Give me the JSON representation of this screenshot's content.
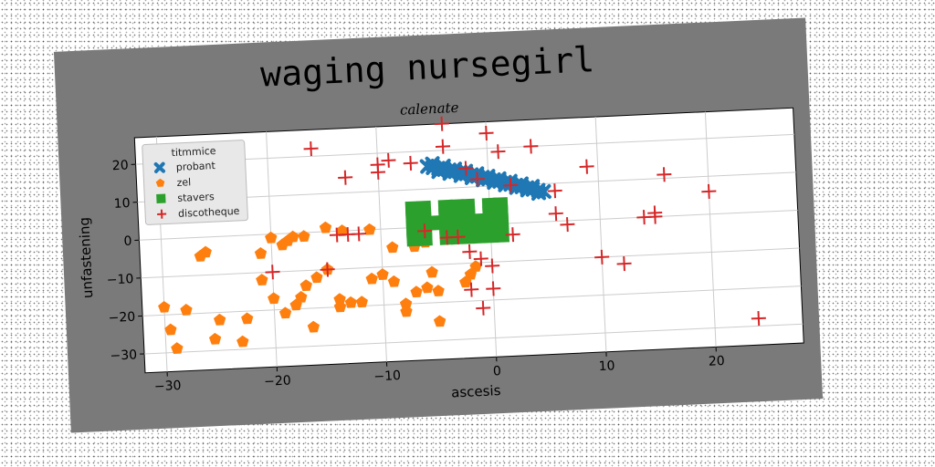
{
  "chart_data": {
    "type": "scatter",
    "title": "waging nursegirl",
    "subtitle": "calenate",
    "xlabel": "ascesis",
    "ylabel": "unfastening",
    "xlim": [
      -32,
      28
    ],
    "ylim": [
      -35,
      27
    ],
    "xticks": [
      -30,
      -20,
      -10,
      0,
      10,
      20
    ],
    "yticks": [
      -30,
      -20,
      -10,
      0,
      10,
      20
    ],
    "grid": true,
    "legend": {
      "title": "titmmice",
      "placement": "top-left",
      "entries": [
        "probant",
        "zel",
        "stavers",
        "discotheque"
      ]
    },
    "series": [
      {
        "name": "probant",
        "marker": "x",
        "color": "#1f77b4",
        "points": [
          [
            -5.5,
            16
          ],
          [
            -5,
            15.6
          ],
          [
            -4.5,
            15.3
          ],
          [
            -4,
            15
          ],
          [
            -3.5,
            14.7
          ],
          [
            -3,
            14.3
          ],
          [
            -2.5,
            14
          ],
          [
            -2,
            13.6
          ],
          [
            -1.5,
            13.2
          ],
          [
            -1,
            12.8
          ],
          [
            -0.5,
            12.4
          ],
          [
            0,
            12
          ],
          [
            0.5,
            11.6
          ],
          [
            1,
            11.2
          ],
          [
            1.5,
            10.8
          ],
          [
            2,
            10.3
          ],
          [
            2.5,
            9.9
          ],
          [
            3,
            9.5
          ],
          [
            3.5,
            9.1
          ],
          [
            4,
            8.7
          ],
          [
            4.5,
            8.3
          ],
          [
            5,
            7.9
          ],
          [
            -5,
            16.6
          ],
          [
            -4,
            15.8
          ],
          [
            -3,
            14.9
          ],
          [
            -2,
            14.2
          ],
          [
            -1,
            13.4
          ],
          [
            0,
            12.6
          ],
          [
            1,
            11.8
          ],
          [
            2,
            11
          ],
          [
            3,
            10.2
          ],
          [
            4,
            9.4
          ],
          [
            -4.5,
            14.5
          ],
          [
            -3.5,
            13.9
          ],
          [
            -2.5,
            13.2
          ],
          [
            -1.5,
            12.5
          ],
          [
            -0.5,
            11.8
          ],
          [
            0.5,
            11
          ],
          [
            1.5,
            10.2
          ],
          [
            2.5,
            9.4
          ],
          [
            3.5,
            8.6
          ],
          [
            4.5,
            7.6
          ]
        ]
      },
      {
        "name": "zel",
        "marker": "pentagon",
        "color": "#ff7f0e",
        "points": [
          [
            -30,
            -18
          ],
          [
            -29.5,
            -24
          ],
          [
            -29,
            -29
          ],
          [
            -28,
            -19
          ],
          [
            -26.5,
            -5
          ],
          [
            -26,
            -4
          ],
          [
            -25.5,
            -27
          ],
          [
            -25,
            -22
          ],
          [
            -23,
            -28
          ],
          [
            -22.5,
            -22
          ],
          [
            -21,
            -5
          ],
          [
            -21,
            -12
          ],
          [
            -20,
            -1
          ],
          [
            -20,
            -17
          ],
          [
            -19,
            -3
          ],
          [
            -19,
            -21
          ],
          [
            -18.5,
            -2
          ],
          [
            -18,
            -1
          ],
          [
            -18,
            -19
          ],
          [
            -17.5,
            -17
          ],
          [
            -17,
            -1
          ],
          [
            -17,
            -14
          ],
          [
            -16.5,
            -25
          ],
          [
            -16,
            -12
          ],
          [
            -15,
            -10
          ],
          [
            -15,
            1
          ],
          [
            -14,
            -20
          ],
          [
            -14,
            -18
          ],
          [
            -13.5,
            0
          ],
          [
            -13,
            -19
          ],
          [
            -12,
            -19
          ],
          [
            -11,
            -13
          ],
          [
            -11,
            0
          ],
          [
            -10,
            -12
          ],
          [
            -9,
            -14
          ],
          [
            -9,
            -5
          ],
          [
            -8,
            -20
          ],
          [
            -8,
            -22
          ],
          [
            -7,
            -17
          ],
          [
            -7,
            -5
          ],
          [
            -6,
            -4
          ],
          [
            -6,
            -16
          ],
          [
            -5.5,
            -12
          ],
          [
            -5,
            -17
          ],
          [
            -5,
            -25
          ],
          [
            -2.5,
            -15
          ],
          [
            -2,
            -13
          ],
          [
            -1.5,
            -11
          ]
        ]
      },
      {
        "name": "stavers",
        "marker": "square",
        "color": "#2ca02c",
        "points": [
          [
            -7,
            5
          ],
          [
            -7,
            3
          ],
          [
            -7,
            1
          ],
          [
            -7,
            -1
          ],
          [
            -7,
            -3
          ],
          [
            -6,
            5
          ],
          [
            -6,
            3
          ],
          [
            -6,
            1
          ],
          [
            -6,
            -1
          ],
          [
            -6,
            -3
          ],
          [
            -5,
            1
          ],
          [
            -4,
            1
          ],
          [
            -4,
            5
          ],
          [
            -4,
            3
          ],
          [
            -4,
            -1
          ],
          [
            -4,
            -3
          ],
          [
            -3,
            5
          ],
          [
            -3,
            3
          ],
          [
            -3,
            1
          ],
          [
            -3,
            -1
          ],
          [
            -3,
            -3
          ],
          [
            -2,
            5
          ],
          [
            -2,
            3
          ],
          [
            -2,
            1
          ],
          [
            -2,
            -1
          ],
          [
            -2,
            -3
          ],
          [
            -1,
            1
          ],
          [
            -1,
            -1
          ],
          [
            -1,
            -3
          ],
          [
            0,
            5
          ],
          [
            0,
            3
          ],
          [
            0,
            1
          ],
          [
            0,
            -1
          ],
          [
            0,
            -3
          ],
          [
            1,
            5
          ],
          [
            1,
            3
          ],
          [
            1,
            1
          ],
          [
            1,
            -1
          ],
          [
            1,
            -3
          ]
        ]
      },
      {
        "name": "discotheque",
        "marker": "plus",
        "color": "#d62728",
        "points": [
          [
            -16,
            22
          ],
          [
            -13,
            14
          ],
          [
            -10,
            15
          ],
          [
            -10,
            17
          ],
          [
            -9,
            18
          ],
          [
            -7,
            17
          ],
          [
            -4,
            27
          ],
          [
            -4,
            21
          ],
          [
            -2,
            15
          ],
          [
            -1,
            12
          ],
          [
            0,
            24
          ],
          [
            1,
            19
          ],
          [
            2,
            10
          ],
          [
            4,
            20
          ],
          [
            6,
            8
          ],
          [
            6,
            2
          ],
          [
            7,
            -1
          ],
          [
            9,
            14
          ],
          [
            10,
            -10
          ],
          [
            12,
            -12
          ],
          [
            14,
            0
          ],
          [
            15,
            0
          ],
          [
            15,
            1
          ],
          [
            16,
            11
          ],
          [
            20,
            6
          ],
          [
            24,
            -28
          ],
          [
            -14,
            -1
          ],
          [
            -13,
            -1
          ],
          [
            -12,
            -1
          ],
          [
            -6,
            -1
          ],
          [
            -4,
            -3
          ],
          [
            -3,
            -3
          ],
          [
            -2,
            -7
          ],
          [
            -1,
            -9
          ],
          [
            0,
            -11
          ],
          [
            -2,
            -17
          ],
          [
            -1,
            -22
          ],
          [
            0,
            -17
          ],
          [
            2,
            -3
          ],
          [
            -20,
            -10
          ],
          [
            -15,
            -10
          ]
        ]
      }
    ]
  }
}
